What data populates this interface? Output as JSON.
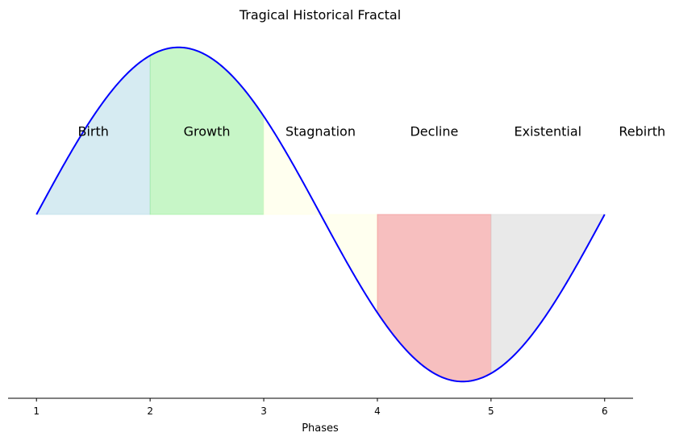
{
  "chart_data": {
    "type": "area",
    "title": "Tragical Historical Fractal",
    "xlabel": "Phases",
    "ylabel": "",
    "xlim": [
      0.75,
      6.25
    ],
    "ylim": [
      -1.1,
      1.1
    ],
    "x_ticks": [
      1,
      2,
      3,
      4,
      5,
      6
    ],
    "curve": {
      "function": "sin(2*pi*(x-1)/5)",
      "x_start": 1,
      "x_end": 6,
      "color": "#0000ff"
    },
    "phases": [
      {
        "label": "Birth",
        "x_start": 1,
        "x_end": 2,
        "label_x": 1.5,
        "label_y": 0.5,
        "color": "#add8e6"
      },
      {
        "label": "Growth",
        "x_start": 2,
        "x_end": 3,
        "label_x": 2.5,
        "label_y": 0.5,
        "color": "#90ee90"
      },
      {
        "label": "Stagnation",
        "x_start": 3,
        "x_end": 4,
        "label_x": 3.5,
        "label_y": 0.5,
        "color": "#ffffe0"
      },
      {
        "label": "Decline",
        "x_start": 4,
        "x_end": 5,
        "label_x": 4.5,
        "label_y": 0.5,
        "color": "#f08080"
      },
      {
        "label": "Existential",
        "x_start": 5,
        "x_end": 6,
        "label_x": 5.5,
        "label_y": 0.5,
        "color": "#d3d3d3"
      },
      {
        "label": "Rebirth",
        "x_start": null,
        "x_end": null,
        "label_x": 6.33,
        "label_y": 0.5,
        "color": null
      }
    ],
    "grid": false,
    "spines": [
      "bottom"
    ]
  }
}
